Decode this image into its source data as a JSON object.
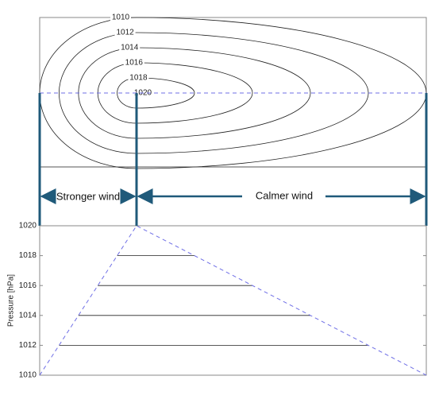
{
  "contours": [
    1010,
    1012,
    1014,
    1016,
    1018,
    1020
  ],
  "annotations": {
    "left": "Stronger wind",
    "right": "Calmer wind"
  },
  "chart_data": {
    "type": "line",
    "ylabel": "Pressure [hPa]",
    "ylim": [
      1010,
      1020
    ],
    "yticks": [
      1010,
      1012,
      1014,
      1016,
      1018,
      1020
    ],
    "levels": [
      1012,
      1014,
      1016,
      1018
    ],
    "color": "#6f6fe6"
  }
}
